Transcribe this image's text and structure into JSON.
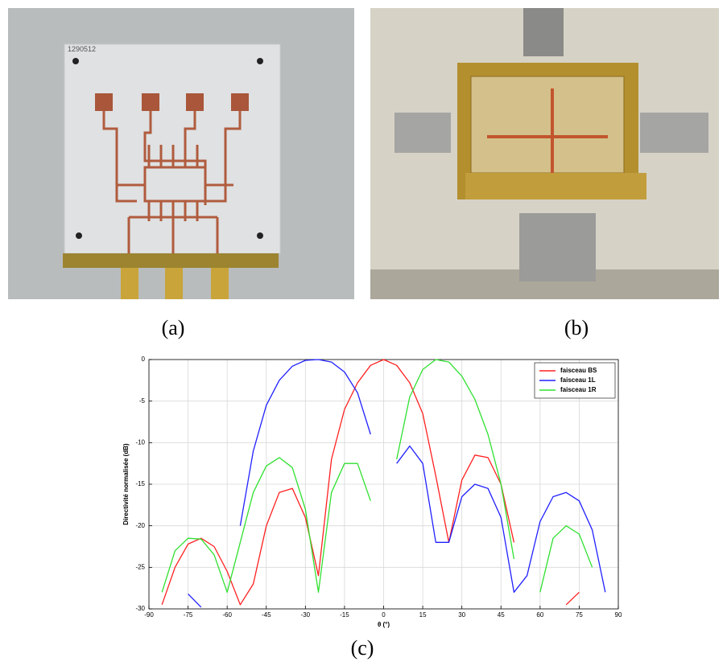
{
  "photos": {
    "label": "1290512"
  },
  "captions": [
    "(a)",
    "(b)",
    "(c)"
  ],
  "chart_data": {
    "type": "line",
    "xlabel": "θ (°)",
    "ylabel": "Directivité normalisée (dB)",
    "x": [
      -90,
      -85,
      -80,
      -75,
      -70,
      -65,
      -60,
      -55,
      -50,
      -45,
      -40,
      -35,
      -30,
      -25,
      -20,
      -15,
      -10,
      -5,
      0,
      5,
      10,
      15,
      20,
      25,
      30,
      35,
      40,
      45,
      50,
      55,
      60,
      65,
      70,
      75,
      80,
      85,
      90
    ],
    "series": [
      {
        "name": "faisceau BS",
        "color": "#ff2020",
        "values": [
          null,
          -29.5,
          -25,
          -22.2,
          -21.5,
          -22.5,
          -25.5,
          -29.5,
          -27,
          -20,
          -16,
          -15.5,
          -19,
          -26,
          -12,
          -6,
          -2.8,
          -0.7,
          0,
          -0.7,
          -2.8,
          -6.5,
          -14,
          -22,
          -14.5,
          -11.5,
          -11.8,
          -15,
          -22,
          null,
          null,
          null,
          -29.5,
          -28,
          null,
          null,
          null
        ]
      },
      {
        "name": "faisceau 1L",
        "color": "#2020ff",
        "values": [
          null,
          null,
          null,
          -28.2,
          -29.8,
          null,
          null,
          -20,
          -11,
          -5.5,
          -2.5,
          -0.8,
          -0.1,
          0,
          -0.3,
          -1.5,
          -4,
          -9,
          null,
          -12.5,
          -10.4,
          -12.5,
          -22,
          -22,
          -16.5,
          -15,
          -15.5,
          -19,
          -28,
          -26,
          -19.5,
          -16.5,
          -16,
          -17,
          -20.5,
          -28,
          null
        ]
      },
      {
        "name": "faisceau 1R",
        "color": "#30e030",
        "values": [
          null,
          -28,
          -23,
          -21.5,
          -21.6,
          -23.5,
          -28,
          -22,
          -16,
          -12.8,
          -11.8,
          -13,
          -18,
          -28,
          -16,
          -12.5,
          -12.5,
          -17,
          null,
          -12,
          -4.5,
          -1.2,
          0,
          -0.3,
          -2,
          -4.8,
          -9,
          -15,
          -24,
          null,
          -28,
          -21.5,
          -20,
          -21,
          -25,
          null,
          null
        ]
      }
    ],
    "xlim": [
      -90,
      90
    ],
    "ylim": [
      -30,
      0
    ],
    "xticks": [
      -90,
      -75,
      -60,
      -45,
      -30,
      -15,
      0,
      15,
      30,
      45,
      60,
      75,
      90
    ],
    "yticks": [
      0,
      -5,
      -10,
      -15,
      -20,
      -25,
      -30
    ],
    "grid": true,
    "legend": "upper right"
  }
}
